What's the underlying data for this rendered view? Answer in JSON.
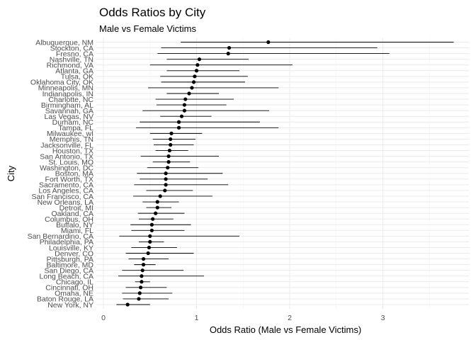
{
  "chart_data": {
    "type": "scatter",
    "title": "Odds Ratios by City",
    "subtitle": "Male vs Female Victims",
    "xlabel": "Odds Ratio (Male vs Female Victims)",
    "ylabel": "City",
    "xlim": [
      0,
      3.9
    ],
    "x_ticks": [
      0,
      1,
      2,
      3
    ],
    "x_tick_labels": [
      "0",
      "1",
      "2",
      "3"
    ],
    "grid": true,
    "points": [
      {
        "city": "New York, NY",
        "or": 0.26,
        "lo": 0.14,
        "hi": 0.5
      },
      {
        "city": "Baton Rouge, LA",
        "or": 0.38,
        "lo": 0.21,
        "hi": 0.7
      },
      {
        "city": "Omaha, NE",
        "or": 0.39,
        "lo": 0.2,
        "hi": 0.74
      },
      {
        "city": "Cincinnati, OH",
        "or": 0.4,
        "lo": 0.24,
        "hi": 0.68
      },
      {
        "city": "Chicago, IL",
        "or": 0.41,
        "lo": 0.34,
        "hi": 0.5
      },
      {
        "city": "Long Beach, CA",
        "or": 0.41,
        "lo": 0.16,
        "hi": 1.08
      },
      {
        "city": "San Diego, CA",
        "or": 0.42,
        "lo": 0.2,
        "hi": 0.86
      },
      {
        "city": "Baltimore, MD",
        "or": 0.43,
        "lo": 0.33,
        "hi": 0.56
      },
      {
        "city": "Pittsburgh, PA",
        "or": 0.43,
        "lo": 0.27,
        "hi": 0.7
      },
      {
        "city": "Denver, CO",
        "or": 0.48,
        "lo": 0.24,
        "hi": 0.97
      },
      {
        "city": "Louisville, KY",
        "or": 0.49,
        "lo": 0.3,
        "hi": 0.79
      },
      {
        "city": "Philadelphia, PA",
        "or": 0.5,
        "lo": 0.38,
        "hi": 0.65
      },
      {
        "city": "San Bernardino, CA",
        "or": 0.5,
        "lo": 0.17,
        "hi": 1.46
      },
      {
        "city": "Miami, FL",
        "or": 0.52,
        "lo": 0.3,
        "hi": 0.87
      },
      {
        "city": "Buffalo, NY",
        "or": 0.52,
        "lo": 0.29,
        "hi": 0.94
      },
      {
        "city": "Columbus, OH",
        "or": 0.53,
        "lo": 0.38,
        "hi": 0.75
      },
      {
        "city": "Oakland, CA",
        "or": 0.56,
        "lo": 0.37,
        "hi": 0.87
      },
      {
        "city": "Detroit, MI",
        "or": 0.58,
        "lo": 0.46,
        "hi": 0.73
      },
      {
        "city": "New Orleans, LA",
        "or": 0.58,
        "lo": 0.42,
        "hi": 0.81
      },
      {
        "city": "San Francisco, CA",
        "or": 0.61,
        "lo": 0.32,
        "hi": 1.17
      },
      {
        "city": "Los Angeles, CA",
        "or": 0.66,
        "lo": 0.46,
        "hi": 0.96
      },
      {
        "city": "Sacramento, CA",
        "or": 0.67,
        "lo": 0.33,
        "hi": 1.34
      },
      {
        "city": "Fort Worth, TX",
        "or": 0.67,
        "lo": 0.39,
        "hi": 1.12
      },
      {
        "city": "Boston, MA",
        "or": 0.67,
        "lo": 0.36,
        "hi": 1.28
      },
      {
        "city": "Washington, DC",
        "or": 0.69,
        "lo": 0.47,
        "hi": 1.02
      },
      {
        "city": "St. Louis, MO",
        "or": 0.7,
        "lo": 0.53,
        "hi": 0.93
      },
      {
        "city": "San Antonio, TX",
        "or": 0.7,
        "lo": 0.4,
        "hi": 1.24
      },
      {
        "city": "Houston, TX",
        "or": 0.71,
        "lo": 0.56,
        "hi": 0.91
      },
      {
        "city": "Jacksonville, FL",
        "or": 0.72,
        "lo": 0.54,
        "hi": 0.97
      },
      {
        "city": "Memphis, TN",
        "or": 0.72,
        "lo": 0.53,
        "hi": 0.99
      },
      {
        "city": "Milwaukee, wI",
        "or": 0.73,
        "lo": 0.5,
        "hi": 1.06
      },
      {
        "city": "Tampa, FL",
        "or": 0.81,
        "lo": 0.35,
        "hi": 1.88
      },
      {
        "city": "Durham, NC",
        "or": 0.81,
        "lo": 0.39,
        "hi": 1.68
      },
      {
        "city": "Las Vegas, NV",
        "or": 0.84,
        "lo": 0.61,
        "hi": 1.16
      },
      {
        "city": "Savannah, GA",
        "or": 0.87,
        "lo": 0.42,
        "hi": 1.78
      },
      {
        "city": "Birmingham, AL",
        "or": 0.87,
        "lo": 0.57,
        "hi": 1.32
      },
      {
        "city": "Charlotte, NC",
        "or": 0.88,
        "lo": 0.56,
        "hi": 1.4
      },
      {
        "city": "Indianapolis, IN",
        "or": 0.92,
        "lo": 0.68,
        "hi": 1.24
      },
      {
        "city": "Minneapolis, MN",
        "or": 0.95,
        "lo": 0.48,
        "hi": 1.88
      },
      {
        "city": "Oklahoma City, OK",
        "or": 0.97,
        "lo": 0.62,
        "hi": 1.52
      },
      {
        "city": "Tulsa, OK",
        "or": 0.98,
        "lo": 0.61,
        "hi": 1.55
      },
      {
        "city": "Atlanta, GA",
        "or": 1.0,
        "lo": 0.68,
        "hi": 1.46
      },
      {
        "city": "Richmond, VA",
        "or": 1.01,
        "lo": 0.5,
        "hi": 2.03
      },
      {
        "city": "Nashville, TN",
        "or": 1.03,
        "lo": 0.68,
        "hi": 1.56
      },
      {
        "city": "Fresno, CA",
        "or": 1.34,
        "lo": 0.58,
        "hi": 3.07
      },
      {
        "city": "Stockton, CA",
        "or": 1.35,
        "lo": 0.62,
        "hi": 2.94
      },
      {
        "city": "Albuquerque, NM",
        "or": 1.77,
        "lo": 0.83,
        "hi": 3.76
      }
    ]
  }
}
